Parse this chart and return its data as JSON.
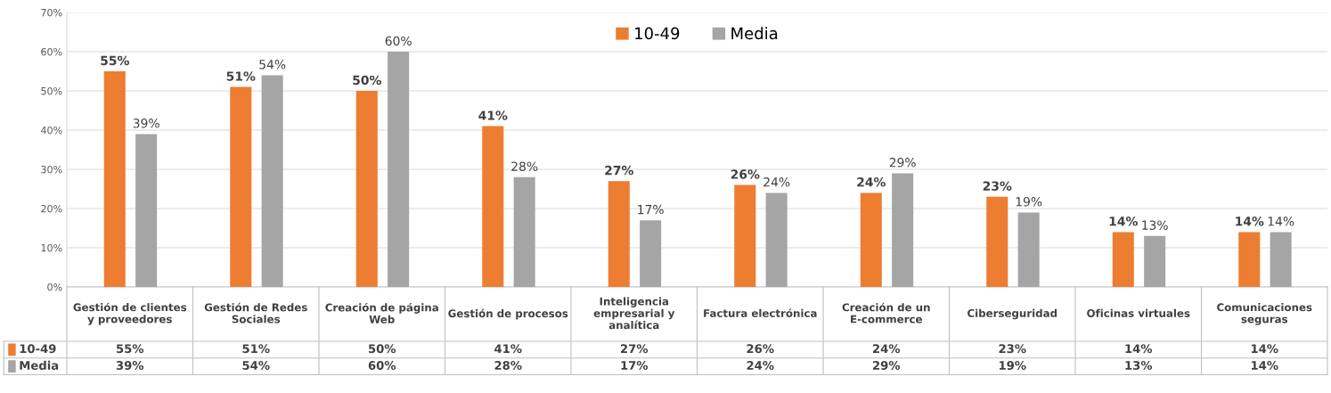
{
  "chart_data": {
    "type": "bar",
    "categories": [
      "Gestión de clientes y proveedores",
      "Gestión de Redes Sociales",
      "Creación de página Web",
      "Gestión de procesos",
      "Inteligencia empresarial y analítica",
      "Factura electrónica",
      "Creación de un E-commerce",
      "Ciberseguridad",
      "Oficinas virtuales",
      "Comunicaciones seguras"
    ],
    "series": [
      {
        "name": "10-49",
        "color": "#ed7d31",
        "values": [
          55,
          51,
          50,
          41,
          27,
          26,
          24,
          23,
          14,
          14
        ],
        "value_labels": [
          "55%",
          "51%",
          "50%",
          "41%",
          "27%",
          "26%",
          "24%",
          "23%",
          "14%",
          "14%"
        ]
      },
      {
        "name": "Media",
        "color": "#a5a5a5",
        "values": [
          39,
          54,
          60,
          28,
          17,
          24,
          29,
          19,
          13,
          14
        ],
        "value_labels": [
          "39%",
          "54%",
          "60%",
          "28%",
          "17%",
          "24%",
          "29%",
          "19%",
          "13%",
          "14%"
        ]
      }
    ],
    "ylim": [
      0,
      70
    ],
    "yticks": [
      {
        "value": 0,
        "label": "0%"
      },
      {
        "value": 10,
        "label": "10%"
      },
      {
        "value": 20,
        "label": "20%"
      },
      {
        "value": 30,
        "label": "30%"
      },
      {
        "value": 40,
        "label": "40%"
      },
      {
        "value": 50,
        "label": "50%"
      },
      {
        "value": 60,
        "label": "60%"
      },
      {
        "value": 70,
        "label": "70%"
      }
    ],
    "grid": "y",
    "legend": "top"
  }
}
